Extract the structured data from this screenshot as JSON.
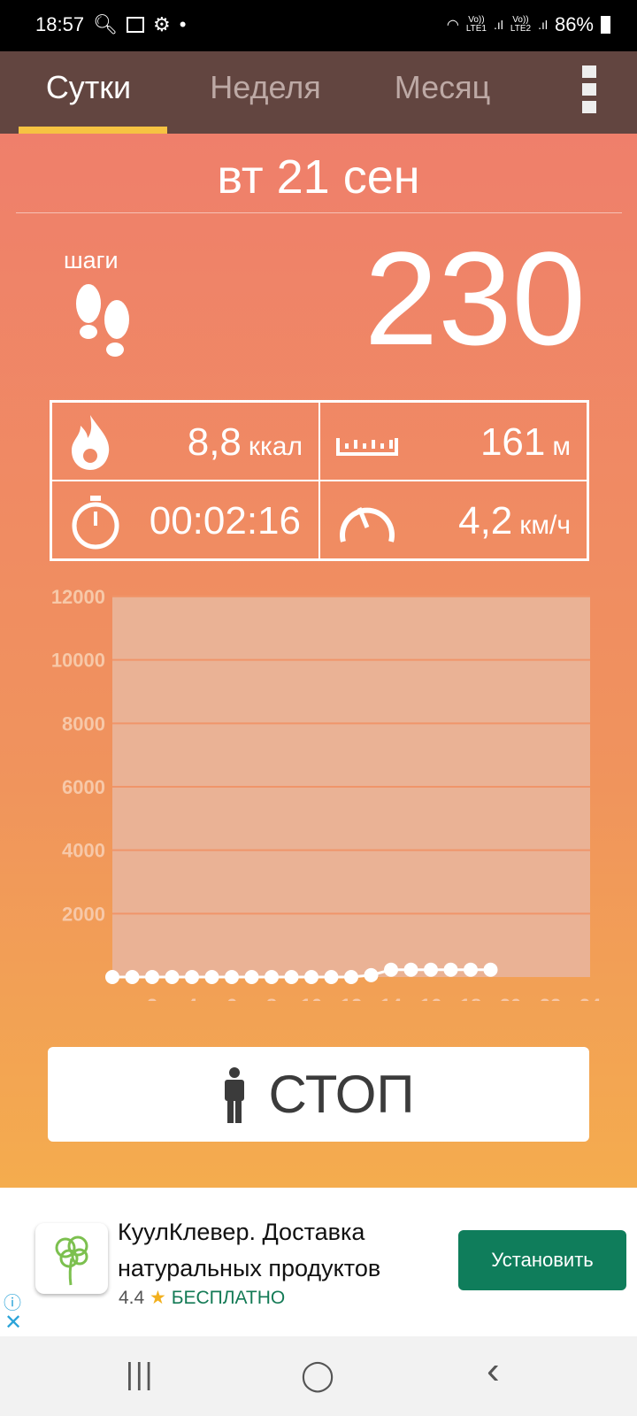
{
  "status_bar": {
    "time": "18:57",
    "sim1": "LTE1",
    "sim2": "LTE2",
    "volte": "Vo))",
    "battery": "86%",
    "icons": [
      "search-icon",
      "gallery-icon",
      "gear-icon",
      "dot-icon",
      "wifi-icon",
      "signal-icon",
      "battery-icon"
    ]
  },
  "tabs": [
    {
      "label": "Сутки",
      "active": true
    },
    {
      "label": "Неделя",
      "active": false
    },
    {
      "label": "Месяц",
      "active": false
    }
  ],
  "date": "вт 21 сен",
  "steps": {
    "label": "шаги",
    "value": "230"
  },
  "stats": {
    "calories": {
      "value": "8,8",
      "unit": "ккал"
    },
    "distance": {
      "value": "161",
      "unit": "м"
    },
    "time": {
      "value": "00:02:16"
    },
    "speed": {
      "value": "4,2",
      "unit": "км/ч"
    }
  },
  "chart_data": {
    "type": "line",
    "x": [
      0,
      1,
      2,
      3,
      4,
      5,
      6,
      7,
      8,
      9,
      10,
      11,
      12,
      13,
      14,
      15,
      16,
      17,
      18,
      19
    ],
    "series": [
      {
        "values": [
          0,
          0,
          0,
          0,
          0,
          0,
          0,
          0,
          0,
          0,
          0,
          0,
          0,
          60,
          230,
          230,
          230,
          230,
          230,
          230
        ]
      }
    ],
    "xlim": [
      0,
      24
    ],
    "ylim": [
      0,
      12000
    ],
    "xticks": [
      "2",
      "4",
      "6",
      "8",
      "10",
      "12",
      "14",
      "16",
      "18",
      "20",
      "22",
      "24"
    ],
    "yticks": [
      "2000",
      "4000",
      "6000",
      "8000",
      "10000",
      "12000"
    ],
    "grid": true,
    "colors": {
      "plot_bg": "#eab295",
      "grid": "#f0956a",
      "points": "#ffffff",
      "ticks": "#f7c8a8"
    }
  },
  "stop_button": {
    "label": "СТОП"
  },
  "ad": {
    "title": "КуулКлевер. Доставка натуральных продуктов",
    "rating": "4.4",
    "star": "★",
    "price": "БЕСПЛАТНО",
    "install": "Установить",
    "info": "ⓘ",
    "close": "✕"
  },
  "nav": {
    "recents": "|||",
    "home": "◯",
    "back": "‹"
  }
}
